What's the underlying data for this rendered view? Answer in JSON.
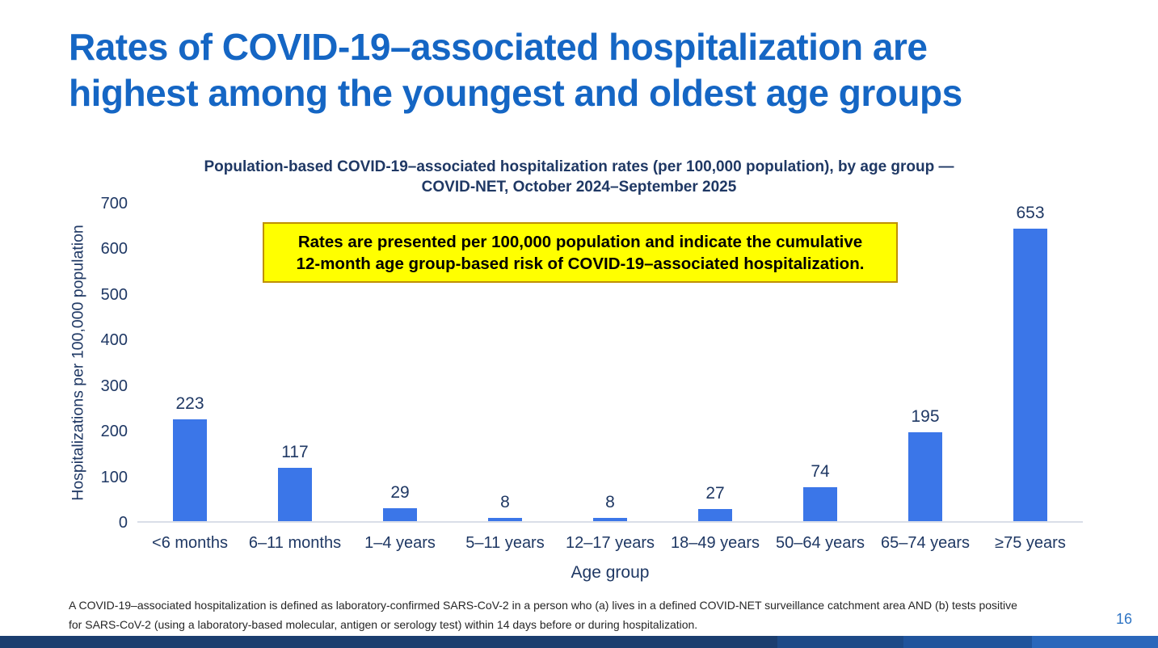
{
  "slide": {
    "title_line1": "Rates of COVID-19–associated hospitalization are",
    "title_line2": "highest among the youngest and oldest age groups",
    "footnote_line1": "A COVID-19–associated hospitalization is defined as laboratory-confirmed SARS-CoV-2 in a person who (a) lives in a defined COVID-NET surveillance catchment area AND (b) tests positive",
    "footnote_line2": "for SARS-CoV-2 (using a laboratory-based molecular, antigen or serology test) within 14 days before or during hospitalization.",
    "page_number": "16"
  },
  "callout": {
    "line1": "Rates are presented per 100,000 population and indicate the cumulative",
    "line2": "12-month age group-based risk of COVID-19–associated hospitalization."
  },
  "chart_data": {
    "type": "bar",
    "title_line1": "Population-based COVID-19–associated hospitalization rates (per 100,000 population), by age group —",
    "title_line2": "COVID-NET, October 2024–September 2025",
    "categories": [
      "<6 months",
      "6–11 months",
      "1–4 years",
      "5–11 years",
      "12–17 years",
      "18–49 years",
      "50–64 years",
      "65–74 years",
      "≥75 years"
    ],
    "values": [
      223,
      117,
      29,
      8,
      8,
      27,
      74,
      195,
      653
    ],
    "xlabel": "Age group",
    "ylabel": "Hospitalizations per 100,000 population",
    "ylim": [
      0,
      700
    ],
    "ytick_interval": 100,
    "grid": false,
    "legend": null,
    "bar_color": "#3B76E8"
  },
  "colors": {
    "title_blue": "#1566C4",
    "navy": "#1F3864",
    "bar_blue": "#3B76E8",
    "callout_fill": "#FFFF00",
    "callout_border": "#BF9000",
    "footnote_gray": "#262626",
    "page_number_blue": "#2E74C4",
    "baseline_gray": "#D9DEE8"
  },
  "footer": {
    "segments": [
      {
        "color": "#1B3E6F",
        "width_pct": 67.1
      },
      {
        "color": "#1D4A87",
        "width_pct": 10.9
      },
      {
        "color": "#20549C",
        "width_pct": 11.1
      },
      {
        "color": "#2A67BB",
        "width_pct": 10.9
      }
    ]
  }
}
